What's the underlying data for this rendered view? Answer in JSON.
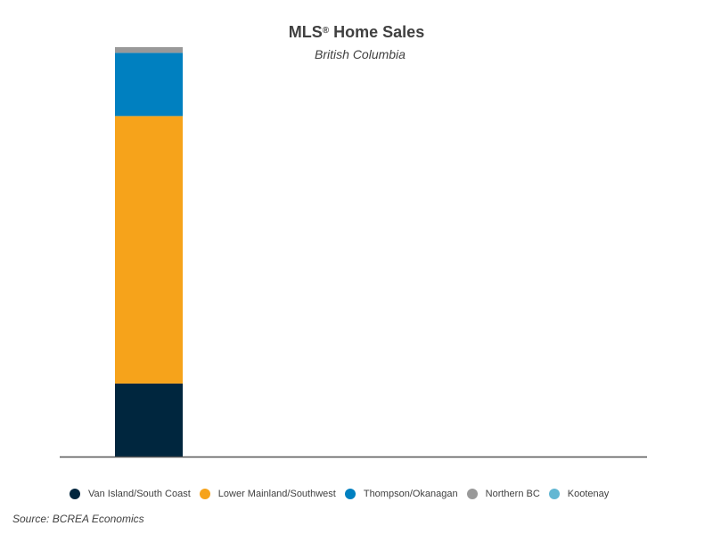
{
  "header": {
    "title_main": "MLS",
    "title_mark": "®",
    "title_rest": " Home Sales",
    "subtitle": "British Columbia"
  },
  "footer": {
    "source": "Source: BCREA Economics"
  },
  "chart_data": {
    "type": "bar",
    "stacked": true,
    "categories": [
      ""
    ],
    "series": [
      {
        "name": "Van Island/South Coast",
        "values": [
          17.8
        ],
        "color": "#00263e"
      },
      {
        "name": "Lower Mainland/Southwest",
        "values": [
          65.2
        ],
        "color": "#f6a31b"
      },
      {
        "name": "Thompson/Okanagan",
        "values": [
          15.4
        ],
        "color": "#0080c0"
      },
      {
        "name": "Northern BC",
        "values": [
          1.4
        ],
        "color": "#999999"
      },
      {
        "name": "Kootenay",
        "values": [
          0
        ],
        "color": "#63b7d3"
      }
    ],
    "ylim": [
      0,
      100
    ],
    "grid": false,
    "legend_position": "bottom"
  }
}
